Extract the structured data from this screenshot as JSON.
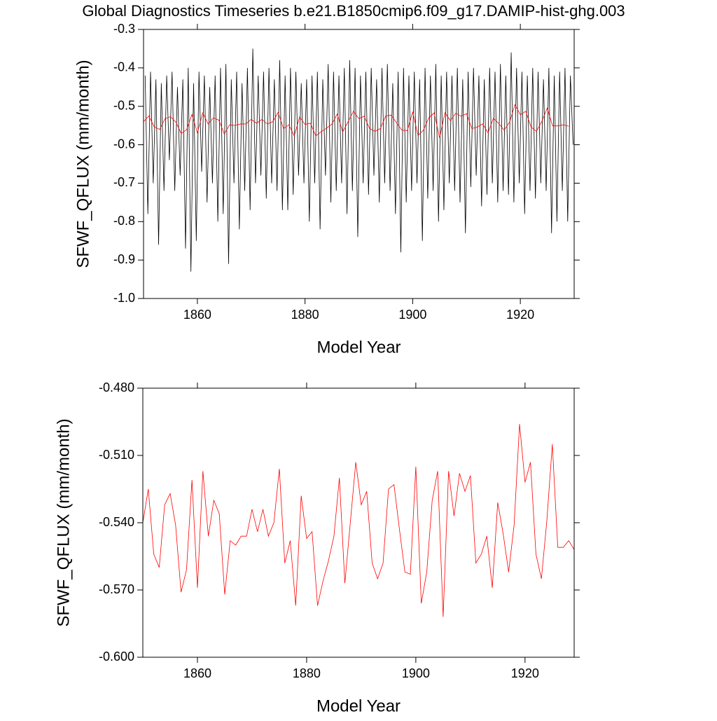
{
  "chart_data": [
    {
      "type": "line",
      "title": "Global Diagnostics Timeseries b.e21.B1850cmip6.f09_g17.DAMIP-hist-ghg.003",
      "x_label": "Model Year",
      "y_label": "SFWF_QFLUX (mm/month)",
      "xlim": [
        1850,
        1930
      ],
      "ylim": [
        -1.0,
        -0.3
      ],
      "xticks": [
        1860,
        1880,
        1900,
        1920
      ],
      "yticks": [
        -0.3,
        -0.4,
        -0.5,
        -0.6,
        -0.7,
        -0.8,
        -0.9,
        {
          "value": -1.0,
          "label": "-1.0"
        }
      ],
      "series": [
        {
          "color": "#000000",
          "x": [
            1850.3,
            1850.8,
            1851.3,
            1851.8,
            1852.3,
            1852.8,
            1853.3,
            1853.8,
            1854.3,
            1854.8,
            1855.3,
            1855.8,
            1856.3,
            1856.8,
            1857.3,
            1857.8,
            1858.3,
            1858.8,
            1859.3,
            1859.8,
            1860.3,
            1860.8,
            1861.3,
            1861.8,
            1862.3,
            1862.8,
            1863.3,
            1863.8,
            1864.3,
            1864.8,
            1865.3,
            1865.8,
            1866.3,
            1866.8,
            1867.3,
            1867.8,
            1868.3,
            1868.8,
            1869.3,
            1869.8,
            1870.3,
            1870.8,
            1871.3,
            1871.8,
            1872.3,
            1872.8,
            1873.3,
            1873.8,
            1874.3,
            1874.8,
            1875.3,
            1875.8,
            1876.3,
            1876.8,
            1877.3,
            1877.8,
            1878.3,
            1878.8,
            1879.3,
            1879.8,
            1880.3,
            1880.8,
            1881.3,
            1881.8,
            1882.3,
            1882.8,
            1883.3,
            1883.8,
            1884.3,
            1884.8,
            1885.3,
            1885.8,
            1886.3,
            1886.8,
            1887.3,
            1887.8,
            1888.3,
            1888.8,
            1889.3,
            1889.8,
            1890.3,
            1890.8,
            1891.3,
            1891.8,
            1892.3,
            1892.8,
            1893.3,
            1893.8,
            1894.3,
            1894.8,
            1895.3,
            1895.8,
            1896.3,
            1896.8,
            1897.3,
            1897.8,
            1898.3,
            1898.8,
            1899.3,
            1899.8,
            1900.3,
            1900.8,
            1901.3,
            1901.8,
            1902.3,
            1902.8,
            1903.3,
            1903.8,
            1904.3,
            1904.8,
            1905.3,
            1905.8,
            1906.3,
            1906.8,
            1907.3,
            1907.8,
            1908.3,
            1908.8,
            1909.3,
            1909.8,
            1910.3,
            1910.8,
            1911.3,
            1911.8,
            1912.3,
            1912.8,
            1913.3,
            1913.8,
            1914.3,
            1914.8,
            1915.3,
            1915.8,
            1916.3,
            1916.8,
            1917.3,
            1917.8,
            1918.3,
            1918.8,
            1919.3,
            1919.8,
            1920.3,
            1920.8,
            1921.3,
            1921.8,
            1922.3,
            1922.8,
            1923.3,
            1923.8,
            1924.3,
            1924.8,
            1925.3,
            1925.8,
            1926.3,
            1926.8,
            1927.3,
            1927.8,
            1928.3,
            1928.8,
            1929.3,
            1929.8
          ],
          "values": [
            -0.42,
            -0.78,
            -0.41,
            -0.7,
            -0.43,
            -0.86,
            -0.44,
            -0.72,
            -0.42,
            -0.64,
            -0.41,
            -0.72,
            -0.45,
            -0.68,
            -0.43,
            -0.87,
            -0.4,
            -0.93,
            -0.44,
            -0.85,
            -0.41,
            -0.67,
            -0.42,
            -0.75,
            -0.45,
            -0.7,
            -0.42,
            -0.8,
            -0.4,
            -0.78,
            -0.39,
            -0.91,
            -0.43,
            -0.7,
            -0.41,
            -0.82,
            -0.44,
            -0.72,
            -0.4,
            -0.77,
            -0.35,
            -0.7,
            -0.42,
            -0.68,
            -0.41,
            -0.74,
            -0.4,
            -0.7,
            -0.43,
            -0.72,
            -0.38,
            -0.77,
            -0.42,
            -0.77,
            -0.4,
            -0.73,
            -0.41,
            -0.68,
            -0.44,
            -0.7,
            -0.43,
            -0.8,
            -0.42,
            -0.7,
            -0.41,
            -0.82,
            -0.43,
            -0.68,
            -0.39,
            -0.75,
            -0.41,
            -0.72,
            -0.42,
            -0.7,
            -0.4,
            -0.78,
            -0.38,
            -0.72,
            -0.4,
            -0.84,
            -0.42,
            -0.7,
            -0.41,
            -0.73,
            -0.4,
            -0.68,
            -0.43,
            -0.75,
            -0.4,
            -0.7,
            -0.39,
            -0.72,
            -0.44,
            -0.78,
            -0.41,
            -0.88,
            -0.4,
            -0.75,
            -0.42,
            -0.72,
            -0.41,
            -0.7,
            -0.43,
            -0.85,
            -0.4,
            -0.74,
            -0.42,
            -0.72,
            -0.39,
            -0.8,
            -0.42,
            -0.77,
            -0.41,
            -0.7,
            -0.42,
            -0.72,
            -0.4,
            -0.75,
            -0.43,
            -0.83,
            -0.41,
            -0.71,
            -0.4,
            -0.68,
            -0.42,
            -0.76,
            -0.43,
            -0.73,
            -0.4,
            -0.7,
            -0.41,
            -0.75,
            -0.39,
            -0.72,
            -0.42,
            -0.73,
            -0.36,
            -0.75,
            -0.4,
            -0.7,
            -0.41,
            -0.78,
            -0.42,
            -0.72,
            -0.4,
            -0.74,
            -0.41,
            -0.7,
            -0.43,
            -0.72,
            -0.4,
            -0.83,
            -0.42,
            -0.8,
            -0.41,
            -0.72,
            -0.4,
            -0.8,
            -0.42,
            -0.6
          ]
        },
        {
          "color": "#ff0000",
          "x": [
            1850,
            1851,
            1852,
            1853,
            1854,
            1855,
            1856,
            1857,
            1858,
            1859,
            1860,
            1861,
            1862,
            1863,
            1864,
            1865,
            1866,
            1867,
            1868,
            1869,
            1870,
            1871,
            1872,
            1873,
            1874,
            1875,
            1876,
            1877,
            1878,
            1879,
            1880,
            1881,
            1882,
            1883,
            1884,
            1885,
            1886,
            1887,
            1888,
            1889,
            1890,
            1891,
            1892,
            1893,
            1894,
            1895,
            1896,
            1897,
            1898,
            1899,
            1900,
            1901,
            1902,
            1903,
            1904,
            1905,
            1906,
            1907,
            1908,
            1909,
            1910,
            1911,
            1912,
            1913,
            1914,
            1915,
            1916,
            1917,
            1918,
            1919,
            1920,
            1921,
            1922,
            1923,
            1924,
            1925,
            1926,
            1927,
            1928,
            1929
          ],
          "values": [
            -0.54,
            -0.525,
            -0.554,
            -0.56,
            -0.532,
            -0.527,
            -0.541,
            -0.571,
            -0.561,
            -0.521,
            -0.569,
            -0.517,
            -0.546,
            -0.53,
            -0.536,
            -0.572,
            -0.548,
            -0.55,
            -0.546,
            -0.546,
            -0.534,
            -0.544,
            -0.534,
            -0.546,
            -0.54,
            -0.516,
            -0.558,
            -0.548,
            -0.577,
            -0.528,
            -0.547,
            -0.544,
            -0.577,
            -0.566,
            -0.557,
            -0.546,
            -0.52,
            -0.567,
            -0.54,
            -0.513,
            -0.532,
            -0.526,
            -0.558,
            -0.565,
            -0.558,
            -0.525,
            -0.523,
            -0.543,
            -0.562,
            -0.563,
            -0.515,
            -0.576,
            -0.562,
            -0.53,
            -0.517,
            -0.582,
            -0.517,
            -0.537,
            -0.518,
            -0.526,
            -0.519,
            -0.558,
            -0.554,
            -0.546,
            -0.569,
            -0.531,
            -0.545,
            -0.562,
            -0.541,
            -0.496,
            -0.522,
            -0.513,
            -0.554,
            -0.565,
            -0.539,
            -0.505,
            -0.551,
            -0.551,
            -0.548,
            -0.552
          ]
        }
      ]
    },
    {
      "type": "line",
      "x_label": "Model Year",
      "y_label": "SFWF_QFLUX (mm/month)",
      "xlim": [
        1850,
        1929
      ],
      "ylim": [
        -0.6,
        -0.48
      ],
      "xticks": [
        1860,
        1880,
        1900,
        1920
      ],
      "yticks": [
        {
          "value": -0.48,
          "label": "-0.480"
        },
        {
          "value": -0.51,
          "label": "-0.510"
        },
        {
          "value": -0.54,
          "label": "-0.540"
        },
        {
          "value": -0.57,
          "label": "-0.570"
        },
        {
          "value": -0.6,
          "label": "-0.600"
        }
      ],
      "series": [
        {
          "color": "#ff0000",
          "x": [
            1850,
            1851,
            1852,
            1853,
            1854,
            1855,
            1856,
            1857,
            1858,
            1859,
            1860,
            1861,
            1862,
            1863,
            1864,
            1865,
            1866,
            1867,
            1868,
            1869,
            1870,
            1871,
            1872,
            1873,
            1874,
            1875,
            1876,
            1877,
            1878,
            1879,
            1880,
            1881,
            1882,
            1883,
            1884,
            1885,
            1886,
            1887,
            1888,
            1889,
            1890,
            1891,
            1892,
            1893,
            1894,
            1895,
            1896,
            1897,
            1898,
            1899,
            1900,
            1901,
            1902,
            1903,
            1904,
            1905,
            1906,
            1907,
            1908,
            1909,
            1910,
            1911,
            1912,
            1913,
            1914,
            1915,
            1916,
            1917,
            1918,
            1919,
            1920,
            1921,
            1922,
            1923,
            1924,
            1925,
            1926,
            1927,
            1928,
            1929
          ],
          "values": [
            -0.54,
            -0.525,
            -0.554,
            -0.56,
            -0.532,
            -0.527,
            -0.541,
            -0.571,
            -0.561,
            -0.521,
            -0.569,
            -0.517,
            -0.546,
            -0.53,
            -0.536,
            -0.572,
            -0.548,
            -0.55,
            -0.546,
            -0.546,
            -0.534,
            -0.544,
            -0.534,
            -0.546,
            -0.54,
            -0.516,
            -0.558,
            -0.548,
            -0.577,
            -0.528,
            -0.547,
            -0.544,
            -0.577,
            -0.566,
            -0.557,
            -0.546,
            -0.52,
            -0.567,
            -0.54,
            -0.513,
            -0.532,
            -0.526,
            -0.558,
            -0.565,
            -0.558,
            -0.525,
            -0.523,
            -0.543,
            -0.562,
            -0.563,
            -0.515,
            -0.576,
            -0.562,
            -0.53,
            -0.517,
            -0.582,
            -0.517,
            -0.537,
            -0.518,
            -0.526,
            -0.519,
            -0.558,
            -0.554,
            -0.546,
            -0.569,
            -0.531,
            -0.545,
            -0.562,
            -0.541,
            -0.496,
            -0.522,
            -0.513,
            -0.554,
            -0.565,
            -0.539,
            -0.505,
            -0.551,
            -0.551,
            -0.548,
            -0.552
          ]
        }
      ]
    }
  ]
}
